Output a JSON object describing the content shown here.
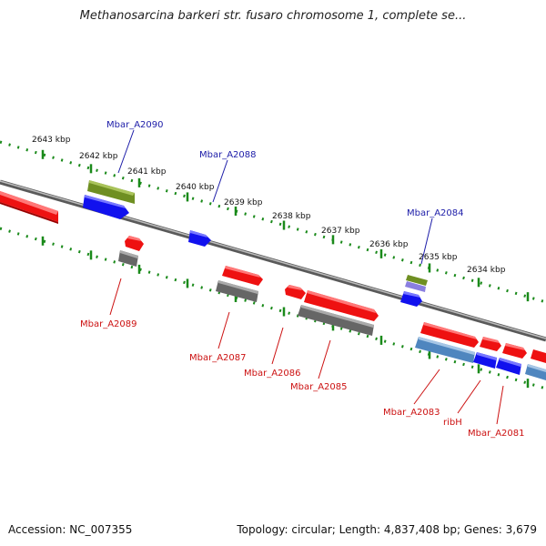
{
  "title": "Methanosarcina barkeri str. fusaro chromosome 1, complete se...",
  "footer": {
    "accession": "Accession: NC_007355",
    "summary": "Topology: circular; Length: 4,837,408 bp; Genes: 3,679"
  },
  "colors": {
    "backbone": "#8c8c8c",
    "tick": "#1a8a1a",
    "red_gene": "#ee1111",
    "blue_gene": "#1111ee",
    "grey_gene": "#666666",
    "green_gene": "#6f8f22",
    "steel_gene": "#4f86bf",
    "lavender_gene": "#8a7fe0",
    "label_blue": "#1c1ca8",
    "label_red": "#cc1111"
  },
  "scale_labels": [
    "2643 kbp",
    "2642 kbp",
    "2641 kbp",
    "2640 kbp",
    "2639 kbp",
    "2638 kbp",
    "2637 kbp",
    "2636 kbp",
    "2635 kbp",
    "2634 kbp"
  ],
  "gene_labels": {
    "Mbar_A2090": "Mbar_A2090",
    "Mbar_A2088": "Mbar_A2088",
    "Mbar_A2084": "Mbar_A2084",
    "Mbar_A2089": "Mbar_A2089",
    "Mbar_A2087": "Mbar_A2087",
    "Mbar_A2086": "Mbar_A2086",
    "Mbar_A2085": "Mbar_A2085",
    "Mbar_A2083": "Mbar_A2083",
    "ribH": "ribH",
    "Mbar_A2081": "Mbar_A2081"
  }
}
